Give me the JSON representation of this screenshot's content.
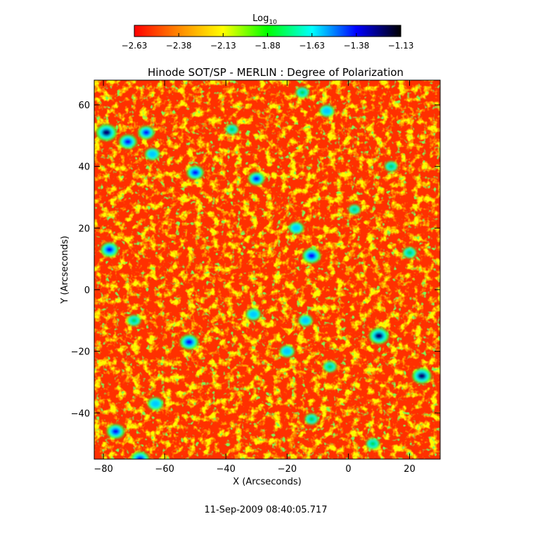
{
  "chart_data": {
    "type": "heatmap",
    "title": "Hinode SOT/SP - MERLIN : Degree of Polarization",
    "xlabel": "X (Arcseconds)",
    "ylabel": "Y (Arcseconds)",
    "xlim": [
      -83,
      30
    ],
    "ylim": [
      -55,
      68
    ],
    "xticks": [
      -80,
      -60,
      -40,
      -20,
      0,
      20
    ],
    "yticks": [
      -40,
      -20,
      0,
      20,
      40,
      60
    ],
    "colorbar": {
      "label_base": "Log",
      "label_sub": "10",
      "range": [
        -2.63,
        -1.13
      ],
      "ticks": [
        "-2.63",
        "-2.38",
        "-2.13",
        "-1.88",
        "-1.63",
        "-1.38",
        "-1.13"
      ],
      "colors": [
        "#ff0000",
        "#ff8800",
        "#ffff00",
        "#00ff00",
        "#00ffff",
        "#0000ff",
        "#000000"
      ]
    },
    "strong_patches": [
      {
        "x": -79,
        "y": 51,
        "level": 1
      },
      {
        "x": -72,
        "y": 48,
        "level": 0.8
      },
      {
        "x": -66,
        "y": 51,
        "level": 0.7
      },
      {
        "x": -64,
        "y": 44,
        "level": 0.6
      },
      {
        "x": -50,
        "y": 38,
        "level": 0.75
      },
      {
        "x": -30,
        "y": 36,
        "level": 0.7
      },
      {
        "x": -78,
        "y": 13,
        "level": 0.8
      },
      {
        "x": -12,
        "y": 11,
        "level": 0.85
      },
      {
        "x": -17,
        "y": 20,
        "level": 0.6
      },
      {
        "x": 20,
        "y": 12,
        "level": 0.5
      },
      {
        "x": -70,
        "y": -10,
        "level": 0.5
      },
      {
        "x": -52,
        "y": -17,
        "level": 0.85
      },
      {
        "x": -31,
        "y": -8,
        "level": 0.6
      },
      {
        "x": -14,
        "y": -10,
        "level": 0.55
      },
      {
        "x": 10,
        "y": -15,
        "level": 0.95
      },
      {
        "x": -20,
        "y": -20,
        "level": 0.6
      },
      {
        "x": -6,
        "y": -25,
        "level": 0.5
      },
      {
        "x": 24,
        "y": -28,
        "level": 0.9
      },
      {
        "x": -63,
        "y": -37,
        "level": 0.65
      },
      {
        "x": -12,
        "y": -42,
        "level": 0.5
      },
      {
        "x": -76,
        "y": -46,
        "level": 0.8
      },
      {
        "x": -68,
        "y": -55,
        "level": 0.85
      },
      {
        "x": 8,
        "y": -50,
        "level": 0.5
      },
      {
        "x": -7,
        "y": 58,
        "level": 0.6
      },
      {
        "x": -15,
        "y": 64,
        "level": 0.5
      },
      {
        "x": -38,
        "y": 52,
        "level": 0.45
      },
      {
        "x": 2,
        "y": 26,
        "level": 0.4
      },
      {
        "x": 14,
        "y": 40,
        "level": 0.45
      }
    ]
  },
  "footer": {
    "timestamp": "11-Sep-2009 08:40:05.717"
  }
}
